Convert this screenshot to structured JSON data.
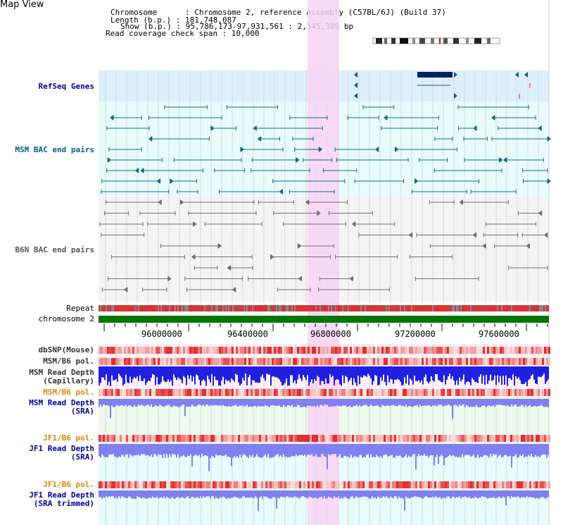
{
  "header": {
    "title": "Map View",
    "info_lines": [
      "Chromosome      : Chromosome 2, reference assembly (C57BL/6J) (Build 37)",
      "Length (b.p.) : 181,748,087",
      "Show (b.p.) : 95,786,173-97,931,561 : 2,145,389 bp",
      "Read coverage check span : 10,000"
    ]
  },
  "tracks": {
    "refseq": {
      "label": "RefSeq Genes",
      "color": "#000099"
    },
    "msm_bac": {
      "label": "MSM BAC end pairs",
      "color": "#006080"
    },
    "b6n_bac": {
      "label": "B6N BAC end pairs",
      "color": "#555555"
    },
    "repeat": {
      "label": "Repeat"
    },
    "chromosome": {
      "label": "chromosome 2"
    },
    "dbsnp": {
      "label": "dbSNP(Mouse)"
    },
    "msm_b6_pol": {
      "label": "MSM/B6 pol."
    },
    "msm_depth_cap": {
      "label_lines": [
        "MSM Read Depth",
        "(Capillary)"
      ]
    },
    "msm_b6_pol2": {
      "label": "MSM/B6 pol."
    },
    "msm_depth_sra": {
      "label_lines": [
        "MSM Read Depth",
        "(SRA)"
      ]
    },
    "jf1_b6_pol": {
      "label": "JF1/B6 pol."
    },
    "jf1_depth_sra": {
      "label_lines": [
        "JF1 Read Depth",
        "(SRA)"
      ]
    },
    "jf1_b6_pol2": {
      "label": "JF1/B6 pol."
    },
    "jf1_depth_trim": {
      "label_lines": [
        "JF1 Read Depth",
        "(SRA trimmed)"
      ]
    }
  },
  "axis": {
    "ticks": [
      "96000000",
      "96400000",
      "96800000",
      "97200000",
      "97600000"
    ]
  },
  "colors": {
    "refseq_bg": "#dcf0fc",
    "bac_bg": "#e8fcfc",
    "b6n_bg": "#f4f4f4",
    "highlight": "#f8d4f4",
    "chrom_bar": "#007700",
    "orange_label": "#dd8800",
    "blue_label": "#000099",
    "depth_blue": "#2020e0",
    "depth_light": "#8080f0"
  }
}
